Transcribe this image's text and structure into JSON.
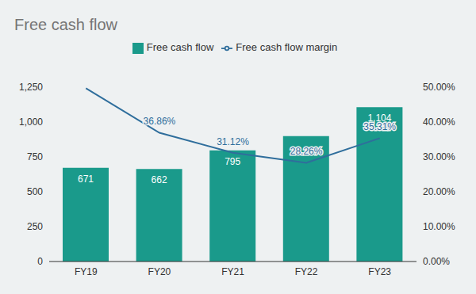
{
  "chart_data": {
    "type": "bar",
    "title": "Free cash flow",
    "categories": [
      "FY19",
      "FY20",
      "FY21",
      "FY22",
      "FY23"
    ],
    "series": [
      {
        "name": "Free cash flow",
        "type": "bar",
        "color": "#1a9a8b",
        "values": [
          671,
          662,
          795,
          898,
          1104
        ],
        "value_labels": [
          "671",
          "662",
          "795",
          null,
          "1,104"
        ],
        "data_labels": true
      },
      {
        "name": "Free cash flow margin",
        "type": "line",
        "axis": "y2",
        "color": "#2f6e9c",
        "values": [
          49.58,
          36.86,
          31.12,
          28.26,
          35.31
        ],
        "value_labels": [
          null,
          "36.86%",
          "31.12%",
          "28.26%",
          "35.31%"
        ],
        "data_labels": true
      }
    ],
    "ylim": [
      0,
      1250
    ],
    "yticks": [
      0,
      250,
      500,
      750,
      {
        "value": 1000,
        "label": "1,000"
      },
      {
        "value": 1250,
        "label": "1,250"
      }
    ],
    "y2lim": [
      0,
      50
    ],
    "y2ticks": [
      {
        "value": 0,
        "label": "0.00%"
      },
      {
        "value": 10,
        "label": "10.00%"
      },
      {
        "value": 20,
        "label": "20.00%"
      },
      {
        "value": 30,
        "label": "30.00%"
      },
      {
        "value": 40,
        "label": "40.00%"
      },
      {
        "value": 50,
        "label": "50.00%"
      }
    ],
    "grid": false,
    "legend": "top"
  }
}
